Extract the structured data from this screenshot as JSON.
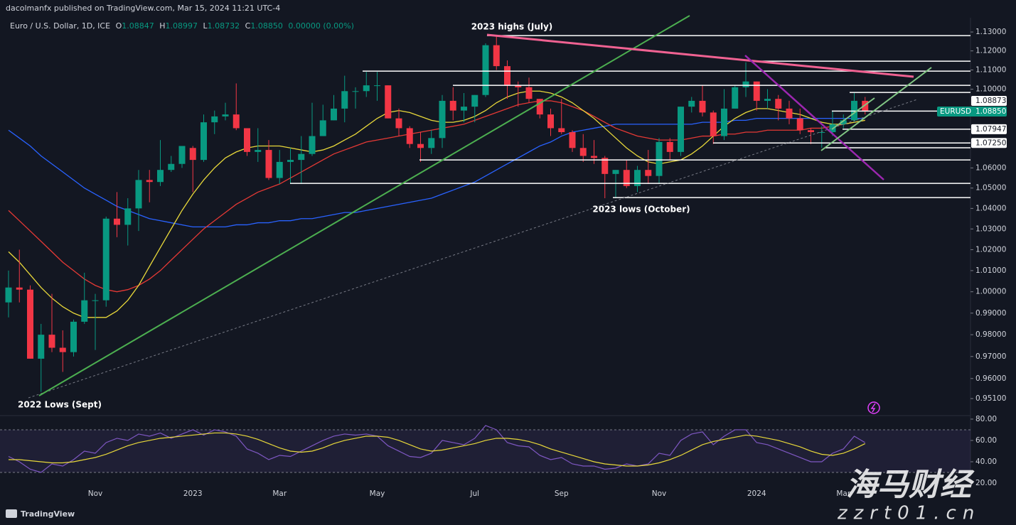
{
  "header": {
    "published": "dacolmanfx published on TradingView.com, Mar 15, 2024 11:21 UTC-4",
    "symbol": "Euro / U.S. Dollar, 1D, ICE",
    "ohlc": [
      {
        "label": "O",
        "value": "1.08847"
      },
      {
        "label": "H",
        "value": "1.08997"
      },
      {
        "label": "L",
        "value": "1.08732"
      },
      {
        "label": "C",
        "value": "1.08850"
      }
    ],
    "change": "0.00000 (0.00%)"
  },
  "chart_data": [
    {
      "type": "candlestick",
      "log_scale": true,
      "up_color": "#089981",
      "down_color": "#f23645",
      "categories": [
        null,
        null,
        null,
        null,
        null,
        null,
        null,
        null,
        "Nov",
        null,
        null,
        null,
        null,
        null,
        null,
        null,
        null,
        "2023",
        null,
        null,
        null,
        null,
        null,
        null,
        null,
        "Mar",
        null,
        null,
        null,
        null,
        null,
        null,
        null,
        null,
        "May",
        null,
        null,
        null,
        null,
        null,
        null,
        null,
        null,
        "Jul",
        null,
        null,
        null,
        null,
        null,
        null,
        null,
        "Sep",
        null,
        null,
        null,
        null,
        null,
        null,
        null,
        null,
        "Nov",
        null,
        null,
        null,
        null,
        null,
        null,
        null,
        null,
        "2024",
        null,
        null,
        null,
        null,
        null,
        null,
        null,
        "Mar",
        null,
        null
      ],
      "open": [
        0.995,
        1.002,
        1.001,
        0.969,
        0.98,
        0.974,
        0.972,
        0.986,
        0.996,
        0.996,
        1.035,
        1.032,
        1.04,
        1.054,
        1.053,
        1.059,
        1.062,
        1.07,
        1.064,
        1.083,
        1.086,
        1.087,
        1.08,
        1.068,
        1.069,
        1.055,
        1.063,
        1.064,
        1.067,
        1.076,
        1.084,
        1.09,
        1.099,
        1.099,
        1.102,
        1.102,
        1.085,
        1.08,
        1.072,
        1.07,
        1.075,
        1.094,
        1.089,
        1.091,
        1.097,
        1.123,
        1.112,
        1.102,
        1.101,
        1.095,
        1.087,
        1.08,
        1.078,
        1.07,
        1.066,
        1.065,
        1.057,
        1.059,
        1.051,
        1.059,
        1.056,
        1.073,
        1.068,
        1.091,
        1.094,
        1.088,
        1.076,
        1.09,
        1.101,
        1.104,
        1.094,
        1.095,
        1.09,
        1.085,
        1.079,
        1.078,
        1.078,
        1.082,
        1.084,
        1.094
      ],
      "high": [
        1.01,
        1.02,
        1.003,
        0.985,
        0.999,
        0.982,
        0.987,
        1.009,
        0.999,
        1.036,
        1.048,
        1.045,
        1.059,
        1.059,
        1.074,
        1.066,
        1.071,
        1.071,
        1.087,
        1.089,
        1.093,
        1.103,
        1.08,
        1.08,
        1.074,
        1.069,
        1.07,
        1.076,
        1.093,
        1.092,
        1.097,
        1.107,
        1.101,
        1.109,
        1.109,
        1.102,
        1.09,
        1.081,
        1.078,
        1.079,
        1.097,
        1.101,
        1.098,
        1.097,
        1.124,
        1.128,
        1.115,
        1.104,
        1.106,
        1.095,
        1.09,
        1.095,
        1.079,
        1.077,
        1.074,
        1.066,
        1.059,
        1.064,
        1.061,
        1.069,
        1.075,
        1.075,
        1.091,
        1.096,
        1.102,
        1.089,
        1.1,
        1.102,
        1.114,
        1.104,
        1.1,
        1.097,
        1.094,
        1.09,
        1.08,
        1.081,
        1.089,
        1.087,
        1.098,
        1.096
      ],
      "low": [
        0.988,
        0.995,
        0.969,
        0.954,
        0.972,
        0.963,
        0.97,
        0.985,
        0.973,
        0.993,
        1.026,
        1.022,
        1.029,
        1.043,
        1.051,
        1.058,
        1.06,
        1.048,
        1.063,
        1.077,
        1.084,
        1.079,
        1.066,
        1.063,
        1.054,
        1.052,
        1.052,
        1.052,
        1.066,
        1.076,
        1.084,
        1.083,
        1.09,
        1.096,
        1.094,
        1.085,
        1.076,
        1.07,
        1.063,
        1.067,
        1.07,
        1.084,
        1.083,
        1.083,
        1.096,
        1.11,
        1.095,
        1.091,
        1.093,
        1.085,
        1.076,
        1.077,
        1.068,
        1.063,
        1.062,
        1.045,
        1.045,
        1.05,
        1.048,
        1.052,
        1.052,
        1.064,
        1.066,
        1.088,
        1.086,
        1.072,
        1.074,
        1.09,
        1.096,
        1.089,
        1.09,
        1.084,
        1.082,
        1.077,
        1.072,
        1.07,
        1.076,
        1.08,
        1.083,
        1.087
      ],
      "close": [
        1.002,
        1.001,
        0.969,
        0.98,
        0.974,
        0.972,
        0.986,
        0.996,
        0.996,
        1.035,
        1.032,
        1.04,
        1.054,
        1.053,
        1.059,
        1.062,
        1.071,
        1.064,
        1.083,
        1.086,
        1.087,
        1.08,
        1.068,
        1.069,
        1.055,
        1.063,
        1.064,
        1.067,
        1.076,
        1.084,
        1.09,
        1.099,
        1.099,
        1.102,
        1.102,
        1.085,
        1.08,
        1.072,
        1.07,
        1.075,
        1.094,
        1.089,
        1.091,
        1.097,
        1.123,
        1.112,
        1.102,
        1.101,
        1.095,
        1.087,
        1.08,
        1.078,
        1.07,
        1.066,
        1.065,
        1.057,
        1.059,
        1.051,
        1.059,
        1.056,
        1.073,
        1.068,
        1.091,
        1.094,
        1.088,
        1.076,
        1.09,
        1.101,
        1.104,
        1.094,
        1.095,
        1.09,
        1.085,
        1.079,
        1.078,
        1.078,
        1.082,
        1.084,
        1.094,
        1.0885
      ],
      "overlays": [
        {
          "color": "#2962ff",
          "values": [
            1.079,
            1.075,
            1.071,
            1.066,
            1.062,
            1.058,
            1.054,
            1.05,
            1.047,
            1.044,
            1.041,
            1.039,
            1.037,
            1.035,
            1.034,
            1.033,
            1.032,
            1.031,
            1.031,
            1.031,
            1.031,
            1.032,
            1.032,
            1.033,
            1.033,
            1.034,
            1.034,
            1.035,
            1.035,
            1.036,
            1.037,
            1.038,
            1.038,
            1.039,
            1.04,
            1.041,
            1.042,
            1.043,
            1.044,
            1.045,
            1.047,
            1.049,
            1.051,
            1.053,
            1.056,
            1.059,
            1.062,
            1.065,
            1.068,
            1.071,
            1.073,
            1.076,
            1.078,
            1.079,
            1.08,
            1.081,
            1.082,
            1.082,
            1.082,
            1.082,
            1.082,
            1.082,
            1.082,
            1.082,
            1.083,
            1.083,
            1.083,
            1.084,
            1.084,
            1.085,
            1.085,
            1.085,
            1.085,
            1.085,
            1.085,
            1.085,
            1.085,
            1.085,
            1.085,
            1.085
          ]
        },
        {
          "color": "#e53935",
          "values": [
            1.039,
            1.034,
            1.029,
            1.024,
            1.019,
            1.014,
            1.01,
            1.006,
            1.003,
            1.001,
            1.0,
            1.001,
            1.003,
            1.006,
            1.01,
            1.015,
            1.02,
            1.025,
            1.03,
            1.034,
            1.038,
            1.042,
            1.045,
            1.048,
            1.05,
            1.052,
            1.055,
            1.058,
            1.061,
            1.064,
            1.067,
            1.069,
            1.071,
            1.073,
            1.074,
            1.075,
            1.076,
            1.077,
            1.078,
            1.079,
            1.08,
            1.081,
            1.082,
            1.084,
            1.086,
            1.088,
            1.09,
            1.092,
            1.093,
            1.094,
            1.094,
            1.093,
            1.091,
            1.089,
            1.086,
            1.083,
            1.08,
            1.078,
            1.076,
            1.075,
            1.074,
            1.074,
            1.074,
            1.075,
            1.076,
            1.076,
            1.077,
            1.077,
            1.078,
            1.078,
            1.079,
            1.079,
            1.079,
            1.079,
            1.08,
            1.08,
            1.081,
            1.082,
            1.083,
            1.084
          ]
        },
        {
          "color": "#e8d83a",
          "values": [
            1.019,
            1.014,
            1.008,
            1.002,
            0.997,
            0.993,
            0.99,
            0.988,
            0.988,
            0.988,
            0.991,
            0.996,
            1.003,
            1.012,
            1.021,
            1.03,
            1.039,
            1.047,
            1.054,
            1.06,
            1.065,
            1.068,
            1.07,
            1.071,
            1.071,
            1.071,
            1.07,
            1.069,
            1.068,
            1.069,
            1.071,
            1.074,
            1.077,
            1.081,
            1.085,
            1.088,
            1.089,
            1.088,
            1.086,
            1.084,
            1.083,
            1.083,
            1.084,
            1.086,
            1.089,
            1.093,
            1.096,
            1.098,
            1.099,
            1.099,
            1.098,
            1.096,
            1.093,
            1.089,
            1.085,
            1.08,
            1.075,
            1.07,
            1.066,
            1.063,
            1.062,
            1.063,
            1.064,
            1.067,
            1.071,
            1.076,
            1.081,
            1.085,
            1.088,
            1.09,
            1.09,
            1.089,
            1.088,
            1.087,
            1.085,
            1.083,
            1.082,
            1.082,
            1.083,
            1.084
          ]
        }
      ],
      "ylim": [
        0.9434,
        1.1376
      ],
      "yticks": [
        {
          "value": 1.13,
          "label": "1.13000"
        },
        {
          "value": 1.12,
          "label": "1.12000"
        },
        {
          "value": 1.11,
          "label": "1.11000"
        },
        {
          "value": 1.1,
          "label": "1.10000"
        },
        {
          "value": 1.06,
          "label": "1.06000"
        },
        {
          "value": 1.05,
          "label": "1.05000"
        },
        {
          "value": 1.04,
          "label": "1.04000"
        },
        {
          "value": 1.03,
          "label": "1.03000"
        },
        {
          "value": 1.02,
          "label": "1.02000"
        },
        {
          "value": 1.01,
          "label": "1.01000"
        },
        {
          "value": 1.0,
          "label": "1.00000"
        },
        {
          "value": 0.99,
          "label": "0.99000"
        },
        {
          "value": 0.98,
          "label": "0.98000"
        },
        {
          "value": 0.97,
          "label": "0.97000"
        },
        {
          "value": 0.96,
          "label": "0.96000"
        },
        {
          "value": 0.951,
          "label": "0.95100"
        }
      ],
      "levels": [
        1.1281,
        1.1146,
        1.1094,
        1.102,
        1.0983,
        {
          "value": 1.08873,
          "label": "1.08873"
        },
        {
          "value": 1.07947,
          "label": "1.07947"
        },
        {
          "value": 1.0725,
          "label": "1.07250"
        },
        1.0701,
        1.064,
        1.0523,
        1.0453
      ],
      "last_price": {
        "name": "EURUSD",
        "value": 1.0885,
        "label": "1.08850"
      },
      "annotations": [
        "2023 highs (July)",
        "2023 lows (October)",
        "2022 Lows (Sept)"
      ]
    },
    {
      "type": "line",
      "series": [
        {
          "color": "#7e57c2",
          "values": [
            45,
            40,
            33,
            30,
            38,
            36,
            42,
            50,
            48,
            58,
            62,
            60,
            66,
            64,
            67,
            62,
            66,
            70,
            65,
            70,
            68,
            64,
            52,
            48,
            42,
            46,
            45,
            50,
            55,
            60,
            64,
            66,
            65,
            66,
            64,
            55,
            50,
            45,
            44,
            48,
            60,
            58,
            56,
            62,
            74,
            70,
            58,
            55,
            54,
            46,
            42,
            44,
            38,
            36,
            36,
            33,
            34,
            38,
            36,
            38,
            48,
            46,
            60,
            66,
            68,
            56,
            64,
            70,
            70,
            58,
            56,
            52,
            48,
            44,
            40,
            40,
            48,
            52,
            64,
            58
          ]
        },
        {
          "color": "#e8d83a",
          "values": [
            42,
            42,
            41,
            40,
            39,
            39,
            40,
            42,
            44,
            47,
            51,
            55,
            58,
            60,
            62,
            63,
            64,
            65,
            66,
            67,
            67,
            66,
            64,
            61,
            57,
            53,
            50,
            49,
            50,
            53,
            57,
            60,
            62,
            64,
            64,
            63,
            60,
            56,
            52,
            50,
            51,
            53,
            55,
            57,
            60,
            62,
            62,
            61,
            59,
            56,
            52,
            49,
            46,
            43,
            40,
            38,
            37,
            36,
            36,
            37,
            39,
            42,
            46,
            51,
            56,
            59,
            61,
            63,
            65,
            64,
            62,
            60,
            57,
            54,
            50,
            47,
            46,
            48,
            52,
            57
          ]
        }
      ],
      "band": [
        30,
        70
      ],
      "ylim": [
        18,
        83.3
      ],
      "yticks": [
        {
          "value": 80,
          "label": "80.00"
        },
        {
          "value": 60,
          "label": "60.00"
        },
        {
          "value": 40,
          "label": "40.00"
        },
        {
          "value": 20,
          "label": "20.00"
        }
      ]
    }
  ],
  "footer": {
    "brand": "TradingView"
  },
  "watermark": {
    "brand": "海马财经",
    "site": "zzrt01.cn"
  }
}
